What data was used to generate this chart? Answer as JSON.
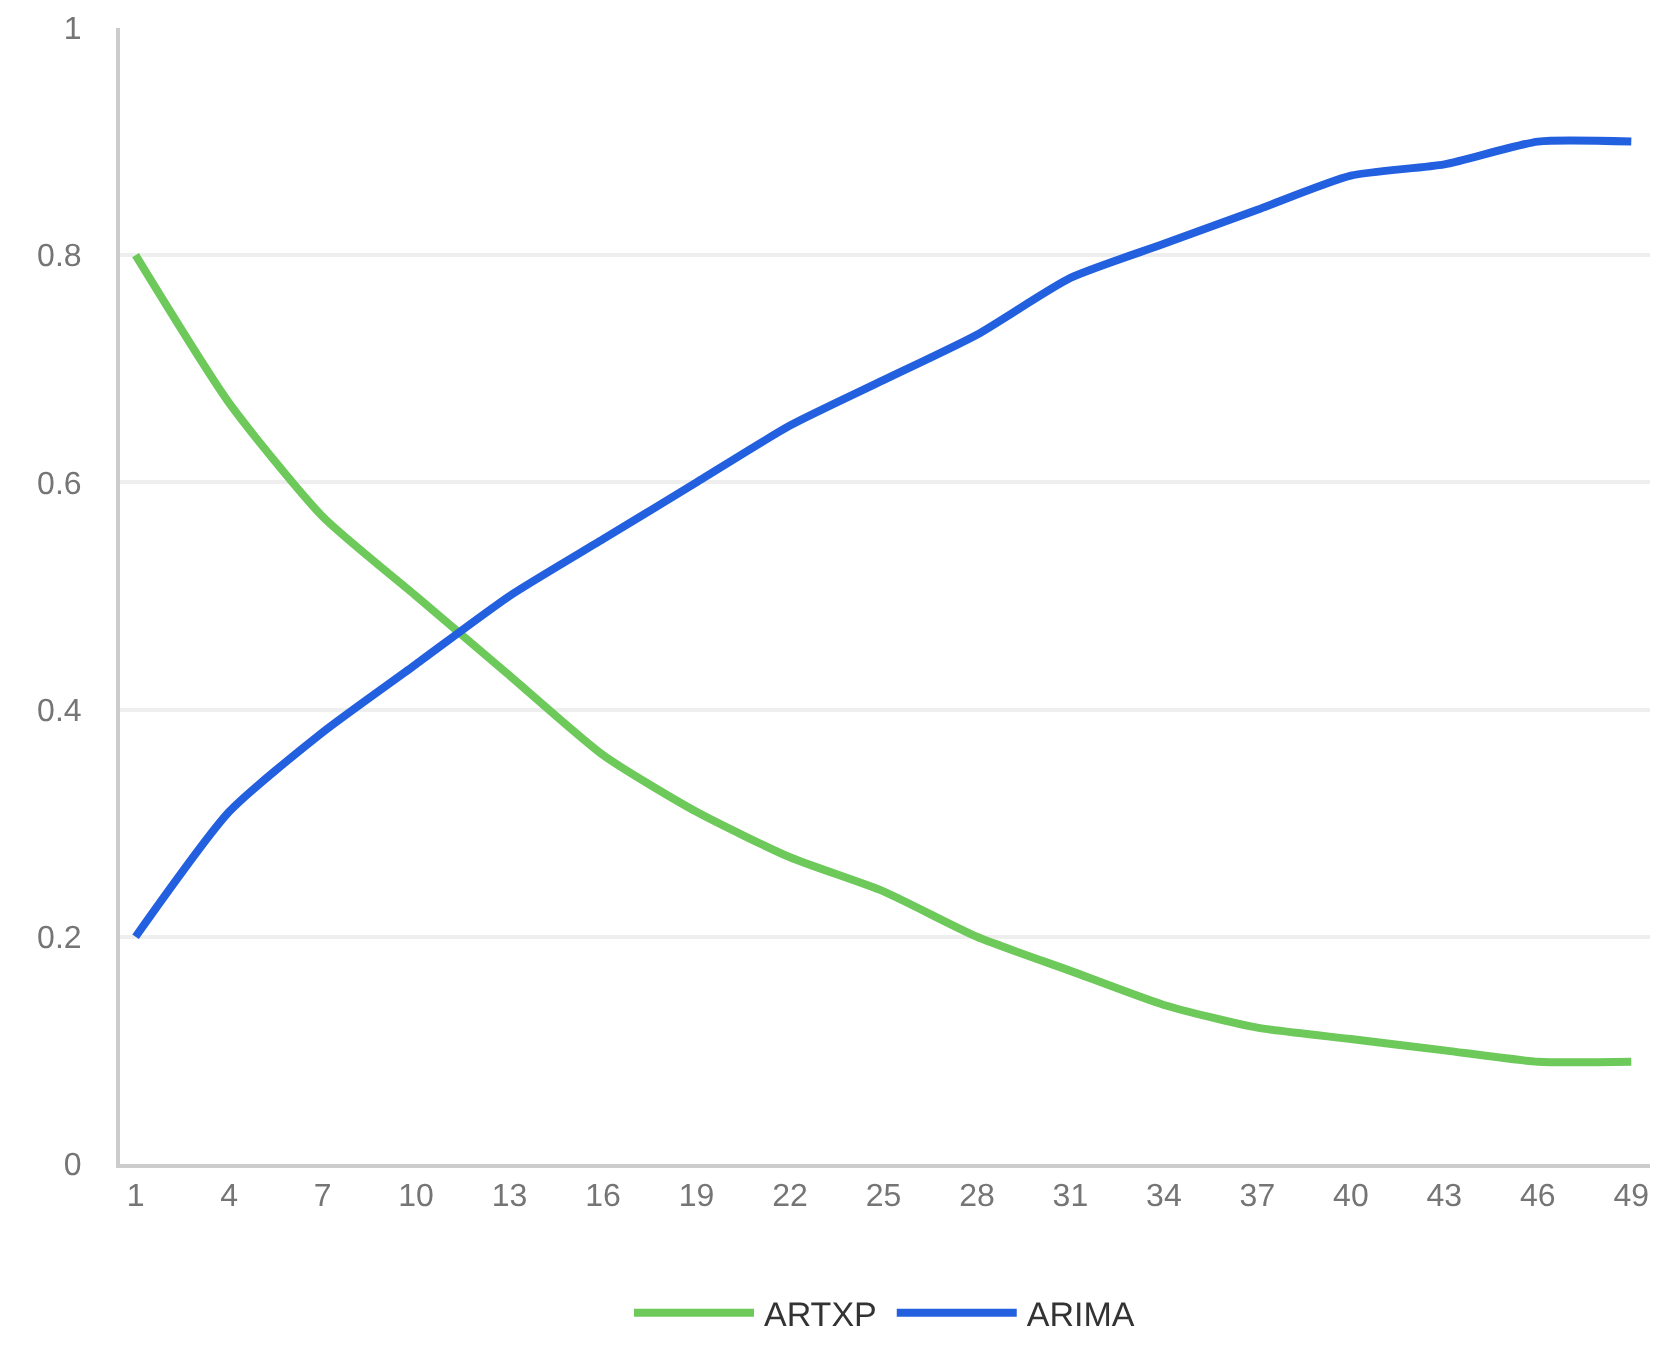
{
  "chart_data": {
    "type": "line",
    "x": [
      1,
      4,
      7,
      10,
      13,
      16,
      19,
      22,
      25,
      28,
      31,
      34,
      37,
      40,
      43,
      46,
      49
    ],
    "series": [
      {
        "name": "ARTXP",
        "color": "#6cc95a",
        "values": [
          0.8,
          0.67,
          0.57,
          0.5,
          0.43,
          0.36,
          0.31,
          0.27,
          0.24,
          0.2,
          0.17,
          0.14,
          0.12,
          0.11,
          0.1,
          0.09,
          0.09
        ]
      },
      {
        "name": "ARIMA",
        "color": "#2360e0",
        "values": [
          0.2,
          0.31,
          0.38,
          0.44,
          0.5,
          0.55,
          0.6,
          0.65,
          0.69,
          0.73,
          0.78,
          0.81,
          0.84,
          0.87,
          0.88,
          0.9,
          0.9
        ]
      }
    ],
    "xlim": [
      0.5,
      49.6
    ],
    "xticks": [
      1,
      4,
      7,
      10,
      13,
      16,
      19,
      22,
      25,
      28,
      31,
      34,
      37,
      40,
      43,
      46,
      49
    ],
    "ylim": [
      0,
      1
    ],
    "yticks": [
      0,
      0.2,
      0.4,
      0.6,
      0.8,
      1
    ],
    "grid": "y",
    "legend": "bottom",
    "marker": "none",
    "line_style": "solid"
  }
}
